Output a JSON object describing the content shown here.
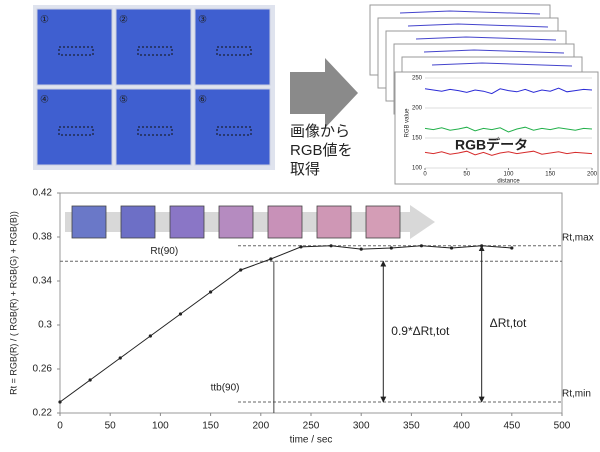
{
  "figure": {
    "wells": [
      "①",
      "②",
      "③",
      "④",
      "⑤",
      "⑥"
    ],
    "caption_lines": [
      "画像から",
      "RGB値を",
      "取得"
    ],
    "data_title": "RGBデータ"
  },
  "chart_data": [
    {
      "type": "line",
      "xlabel": "time / sec",
      "ylabel": "Rt = RGB(R) / ( RGB(R) + RGB(G) + RGB(B))",
      "x": [
        0,
        30,
        60,
        90,
        120,
        150,
        180,
        210,
        240,
        270,
        300,
        330,
        360,
        390,
        420,
        450
      ],
      "series": [
        {
          "color": "#222222",
          "values": [
            0.23,
            0.25,
            0.27,
            0.29,
            0.31,
            0.33,
            0.35,
            0.36,
            0.371,
            0.372,
            0.369,
            0.37,
            0.372,
            0.37,
            0.372,
            0.37
          ]
        }
      ],
      "xlim": [
        0,
        500
      ],
      "xticks": [
        0,
        50,
        100,
        150,
        200,
        250,
        300,
        350,
        400,
        450,
        500
      ],
      "ylim": [
        0.22,
        0.42
      ],
      "yticks": [
        0.22,
        0.26,
        0.3,
        0.34,
        0.38,
        0.42
      ],
      "ref_lines": [
        {
          "label": "Rt,max",
          "value": 0.372
        },
        {
          "label": "Rt(90)",
          "value": 0.358
        },
        {
          "label": "Rt,min",
          "value": 0.23
        }
      ],
      "vline": {
        "label": "ttb(90)",
        "value": 213
      },
      "spans": [
        {
          "label": "0.9*ΔRt,tot",
          "x": 322,
          "from": 0.23,
          "to": 0.358
        },
        {
          "label": "ΔRt,tot",
          "x": 420,
          "from": 0.23,
          "to": 0.372
        }
      ],
      "swatch_colors": [
        "#6a78c8",
        "#6d6fc6",
        "#8a76c6",
        "#b58bc0",
        "#c891b8",
        "#cf97b5",
        "#d49db6"
      ]
    },
    {
      "type": "line",
      "xlabel": "distance",
      "ylabel": "RGB value",
      "x": [
        0,
        10,
        20,
        30,
        40,
        50,
        60,
        70,
        80,
        90,
        100,
        110,
        120,
        130,
        140,
        150,
        160,
        170,
        180,
        190,
        200
      ],
      "series": [
        {
          "color": "#2b2bd6",
          "values": [
            232,
            230,
            228,
            231,
            229,
            226,
            230,
            228,
            224,
            232,
            229,
            227,
            231,
            226,
            230,
            228,
            233,
            227,
            229,
            231,
            230
          ]
        },
        {
          "color": "#22b04a",
          "values": [
            166,
            164,
            167,
            163,
            165,
            168,
            162,
            166,
            164,
            167,
            160,
            165,
            168,
            163,
            166,
            164,
            167,
            165,
            163,
            166,
            165
          ]
        },
        {
          "color": "#d62b2b",
          "values": [
            126,
            124,
            127,
            123,
            125,
            128,
            122,
            126,
            121,
            125,
            127,
            124,
            126,
            128,
            123,
            125,
            127,
            124,
            126,
            125,
            124
          ]
        }
      ],
      "xlim": [
        0,
        200
      ],
      "xticks": [
        0,
        50,
        100,
        150,
        200
      ],
      "ylim": [
        100,
        250
      ],
      "yticks": [
        100,
        150,
        200,
        250
      ]
    }
  ]
}
